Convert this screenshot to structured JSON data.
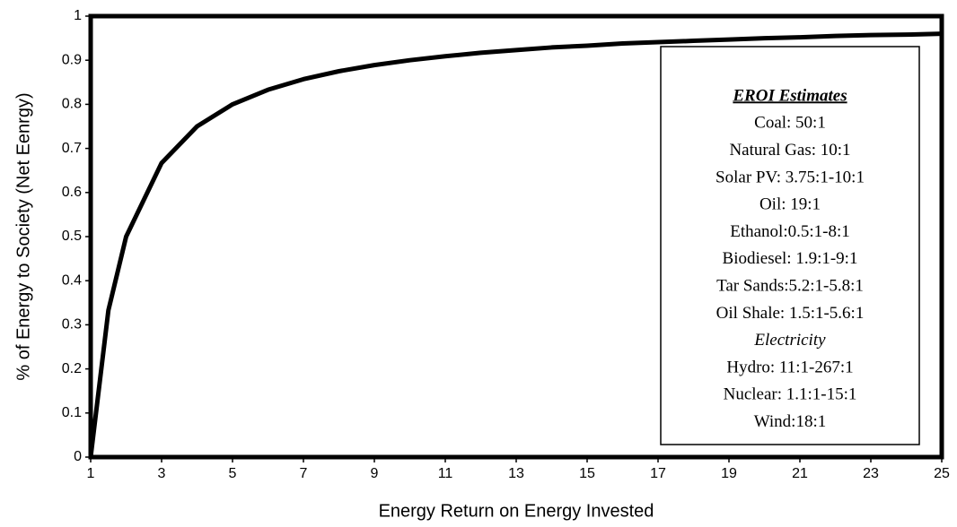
{
  "chart_data": {
    "type": "line",
    "x_label": "Energy Return on Energy Invested",
    "y_label": "% of Energy to Society (Net Eenrgy)",
    "x": [
      1,
      1.5,
      2,
      3,
      4,
      5,
      6,
      7,
      8,
      9,
      10,
      11,
      12,
      13,
      14,
      15,
      16,
      17,
      18,
      19,
      20,
      21,
      22,
      23,
      24,
      25
    ],
    "series": [
      {
        "color": "#000000",
        "values": [
          0,
          0.333,
          0.5,
          0.667,
          0.75,
          0.8,
          0.833,
          0.857,
          0.875,
          0.889,
          0.9,
          0.909,
          0.917,
          0.923,
          0.929,
          0.933,
          0.938,
          0.941,
          0.944,
          0.947,
          0.95,
          0.952,
          0.955,
          0.957,
          0.958,
          0.96
        ]
      }
    ],
    "xlim": [
      1,
      25
    ],
    "xticks": [
      1,
      3,
      5,
      7,
      9,
      11,
      13,
      15,
      17,
      19,
      21,
      23,
      25
    ],
    "ylim": [
      0,
      1
    ],
    "yticks": [
      0,
      0.1,
      0.2,
      0.3,
      0.4,
      0.5,
      0.6,
      0.7,
      0.8,
      0.9,
      1
    ],
    "annotation": {
      "title": "EROI Estimates",
      "items": [
        "Coal: 50:1",
        "Natural Gas: 10:1",
        "Solar PV: 3.75:1-10:1",
        "Oil: 19:1",
        "Ethanol:0.5:1-8:1",
        "Biodiesel: 1.9:1-9:1",
        "Tar Sands:5.2:1-5.8:1",
        "Oil Shale: 1.5:1-5.6:1"
      ],
      "subtitle": "Electricity",
      "sub_items": [
        "Hydro: 11:1-267:1",
        "Nuclear: 1.1:1-15:1",
        "Wind:18:1"
      ]
    }
  }
}
